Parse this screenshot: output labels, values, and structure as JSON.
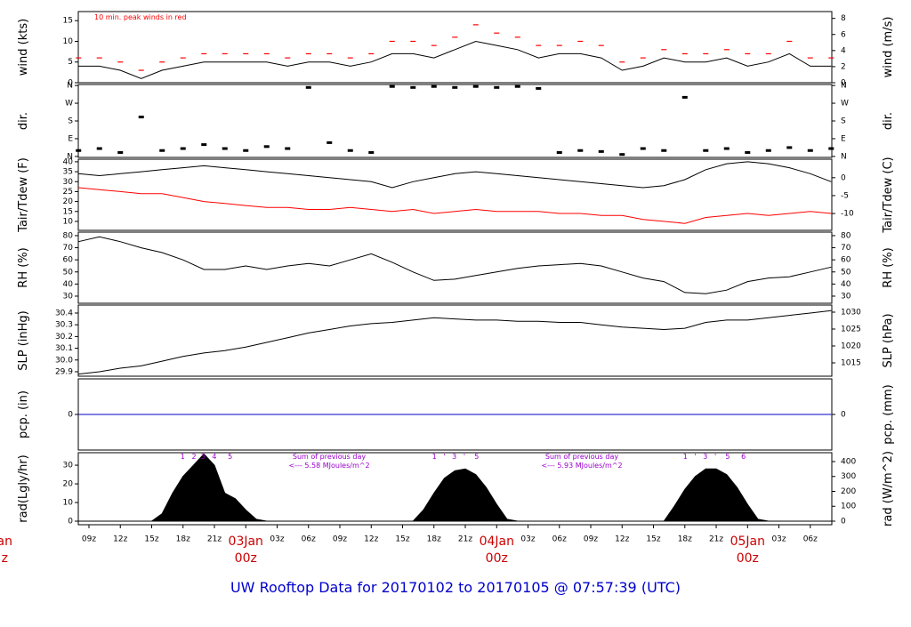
{
  "title": "UW Rooftop Data for 20170102  to  20170105 @ 07:57:39  (UTC)",
  "time_axis": {
    "xlim": [
      -1.02,
      71.06
    ],
    "xticks": [
      {
        "value": 0,
        "label": "09z"
      },
      {
        "value": 3,
        "label": "12z"
      },
      {
        "value": 6,
        "label": "15z"
      },
      {
        "value": 9,
        "label": "18z"
      },
      {
        "value": 12,
        "label": "21z"
      },
      {
        "value": 18,
        "label": "03z"
      },
      {
        "value": 21,
        "label": "06z"
      },
      {
        "value": 24,
        "label": "09z"
      },
      {
        "value": 27,
        "label": "12z"
      },
      {
        "value": 30,
        "label": "15z"
      },
      {
        "value": 33,
        "label": "18z"
      },
      {
        "value": 36,
        "label": "21z"
      },
      {
        "value": 42,
        "label": "03z"
      },
      {
        "value": 45,
        "label": "06z"
      },
      {
        "value": 48,
        "label": "09z"
      },
      {
        "value": 51,
        "label": "12z"
      },
      {
        "value": 54,
        "label": "15z"
      },
      {
        "value": 57,
        "label": "18z"
      },
      {
        "value": 60,
        "label": "21z"
      },
      {
        "value": 66,
        "label": "03z"
      },
      {
        "value": 69,
        "label": "06z"
      }
    ],
    "day_ticks": [
      {
        "value": 15,
        "label": "03Jan",
        "hour": "00z"
      },
      {
        "value": 39,
        "label": "04Jan",
        "hour": "00z"
      },
      {
        "value": 63,
        "label": "05Jan",
        "hour": "00z"
      }
    ],
    "cut_labels": [
      "an",
      "z"
    ]
  },
  "chart_data": [
    {
      "type": "line",
      "ylabel": "wind (kts)",
      "y2label": "wind (m/s)",
      "annotation": "10 min. peak winds in red",
      "ylim": [
        0,
        17.2
      ],
      "yticks": [
        0,
        5,
        10,
        15
      ],
      "y2lim": [
        0,
        8.85
      ],
      "y2ticks": [
        0,
        2,
        4,
        6,
        8
      ],
      "x": [
        -1,
        1,
        3,
        5,
        7,
        9,
        11,
        13,
        15,
        17,
        19,
        21,
        23,
        25,
        27,
        29,
        31,
        33,
        35,
        37,
        39,
        41,
        43,
        45,
        47,
        49,
        51,
        53,
        55,
        57,
        59,
        61,
        63,
        65,
        67,
        69,
        71
      ],
      "series": [
        {
          "color": "#000000",
          "values": [
            4,
            4,
            3,
            1,
            3,
            4,
            5,
            5,
            5,
            5,
            4,
            5,
            5,
            4,
            5,
            7,
            7,
            6,
            8,
            10,
            9,
            8,
            6,
            7,
            7,
            6,
            3,
            4,
            6,
            5,
            5,
            6,
            4,
            5,
            7,
            4,
            4
          ]
        },
        {
          "color": "#ff0000",
          "marker": "dash",
          "values": [
            6,
            6,
            5,
            3,
            5,
            6,
            7,
            7,
            7,
            7,
            6,
            7,
            7,
            6,
            7,
            10,
            10,
            9,
            11,
            14,
            12,
            11,
            9,
            9,
            10,
            9,
            5,
            6,
            8,
            7,
            7,
            8,
            7,
            7,
            10,
            6,
            6
          ]
        }
      ]
    },
    {
      "type": "scatter",
      "ylabel": "dir.",
      "y2label": "dir.",
      "ylim": [
        -5,
        365
      ],
      "yticks": [
        {
          "value": 0,
          "label": "N"
        },
        {
          "value": 90,
          "label": "E"
        },
        {
          "value": 180,
          "label": "S"
        },
        {
          "value": 270,
          "label": "W"
        },
        {
          "value": 360,
          "label": "N"
        }
      ],
      "y2lim": [
        -5,
        365
      ],
      "y2ticks": [
        {
          "value": 0,
          "label": "N"
        },
        {
          "value": 90,
          "label": "E"
        },
        {
          "value": 180,
          "label": "S"
        },
        {
          "value": 270,
          "label": "W"
        },
        {
          "value": 360,
          "label": "N"
        }
      ],
      "x": [
        -1,
        1,
        3,
        5,
        7,
        9,
        11,
        13,
        15,
        17,
        19,
        21,
        23,
        25,
        27,
        29,
        31,
        33,
        35,
        37,
        39,
        41,
        43,
        45,
        47,
        49,
        51,
        53,
        55,
        57,
        59,
        61,
        63,
        65,
        67,
        69,
        71
      ],
      "series": [
        {
          "color": "#000000",
          "values": [
            30,
            40,
            20,
            200,
            30,
            40,
            60,
            40,
            30,
            50,
            40,
            350,
            70,
            30,
            20,
            355,
            350,
            355,
            350,
            355,
            350,
            355,
            345,
            20,
            30,
            25,
            10,
            40,
            30,
            300,
            30,
            40,
            20,
            30,
            45,
            30,
            40
          ]
        }
      ]
    },
    {
      "type": "line",
      "ylabel": "Tair/Tdew (F)",
      "y2label": "Tair/Tdew (C)",
      "ylim": [
        5.5,
        41.3
      ],
      "yticks": [
        10,
        15,
        20,
        25,
        30,
        35,
        40
      ],
      "y2lim": [
        -14.7,
        5.17
      ],
      "y2ticks": [
        -10,
        -5,
        0
      ],
      "x": [
        -1,
        1,
        3,
        5,
        7,
        9,
        11,
        13,
        15,
        17,
        19,
        21,
        23,
        25,
        27,
        29,
        31,
        33,
        35,
        37,
        39,
        41,
        43,
        45,
        47,
        49,
        51,
        53,
        55,
        57,
        59,
        61,
        63,
        65,
        67,
        69,
        71
      ],
      "series": [
        {
          "color": "#000000",
          "values": [
            34,
            33,
            34,
            35,
            36,
            37,
            38,
            37,
            36,
            35,
            34,
            33,
            32,
            31,
            30,
            27,
            30,
            32,
            34,
            35,
            34,
            33,
            32,
            31,
            30,
            29,
            28,
            27,
            28,
            31,
            36,
            39,
            40,
            39,
            37,
            34,
            30
          ]
        },
        {
          "color": "#ff0000",
          "values": [
            27,
            26,
            25,
            24,
            24,
            22,
            20,
            19,
            18,
            17,
            17,
            16,
            16,
            17,
            16,
            15,
            16,
            14,
            15,
            16,
            15,
            15,
            15,
            14,
            14,
            13,
            13,
            11,
            10,
            9,
            12,
            13,
            14,
            13,
            14,
            15,
            14
          ]
        }
      ]
    },
    {
      "type": "line",
      "ylabel": "RH (%)",
      "y2label": "RH (%)",
      "ylim": [
        24.1,
        82.9
      ],
      "yticks": [
        30,
        40,
        50,
        60,
        70,
        80
      ],
      "y2lim": [
        24.1,
        82.9
      ],
      "y2ticks": [
        30,
        40,
        50,
        60,
        70,
        80
      ],
      "x": [
        -1,
        1,
        3,
        5,
        7,
        9,
        11,
        13,
        15,
        17,
        19,
        21,
        23,
        25,
        27,
        29,
        31,
        33,
        35,
        37,
        39,
        41,
        43,
        45,
        47,
        49,
        51,
        53,
        55,
        57,
        59,
        61,
        63,
        65,
        67,
        69,
        71
      ],
      "series": [
        {
          "color": "#000000",
          "values": [
            75,
            79,
            75,
            70,
            66,
            60,
            52,
            52,
            55,
            52,
            55,
            57,
            55,
            60,
            65,
            58,
            50,
            43,
            44,
            47,
            50,
            53,
            55,
            56,
            57,
            55,
            50,
            45,
            42,
            33,
            32,
            35,
            42,
            45,
            46,
            50,
            54
          ]
        }
      ]
    },
    {
      "type": "line",
      "ylabel": "SLP (inHg)",
      "y2label": "SLP (hPa)",
      "ylim": [
        29.862,
        30.468
      ],
      "yticks": [
        29.9,
        {
          "value": 30,
          "label": "30.0"
        },
        30.1,
        30.2,
        30.3,
        30.4
      ],
      "y2lim": [
        1011.05,
        1032.1
      ],
      "y2ticks": [
        1015,
        1020,
        1025,
        1030
      ],
      "x": [
        -1,
        1,
        3,
        5,
        7,
        9,
        11,
        13,
        15,
        17,
        19,
        21,
        23,
        25,
        27,
        29,
        31,
        33,
        35,
        37,
        39,
        41,
        43,
        45,
        47,
        49,
        51,
        53,
        55,
        57,
        59,
        61,
        63,
        65,
        67,
        69,
        71
      ],
      "series": [
        {
          "color": "#000000",
          "values": [
            29.88,
            29.9,
            29.93,
            29.95,
            29.99,
            30.03,
            30.06,
            30.08,
            30.11,
            30.15,
            30.19,
            30.23,
            30.26,
            30.29,
            30.31,
            30.32,
            30.34,
            30.36,
            30.35,
            30.34,
            30.34,
            30.33,
            30.33,
            30.32,
            30.32,
            30.3,
            30.28,
            30.27,
            30.26,
            30.27,
            30.32,
            30.34,
            30.34,
            30.36,
            30.38,
            30.4,
            30.42
          ]
        }
      ]
    },
    {
      "type": "line",
      "ylabel": "pcp. (in)",
      "y2label": "pcp. (mm)",
      "ylim": [
        -1,
        1
      ],
      "yticks": [
        0
      ],
      "y2lim": [
        -1,
        1
      ],
      "y2ticks": [
        0
      ],
      "x": [
        -1,
        71
      ],
      "series": [
        {
          "color": "#0000cc",
          "values": [
            0,
            0
          ]
        }
      ]
    },
    {
      "type": "area",
      "ylabel": "rad(Lgly/hr)",
      "y2label": "rad (W/m^2)",
      "ylim": [
        -1.9,
        36.7
      ],
      "yticks": [
        0,
        10,
        20,
        30
      ],
      "y2lim": [
        -23.9,
        459.7
      ],
      "y2ticks": [
        0,
        100,
        200,
        300,
        400
      ],
      "hour_notes": [
        "1   2  3   4     5",
        "1   '   3   '    5",
        "1   '   3   '    5     6"
      ],
      "sums": [
        {
          "label": "Sum of previous day",
          "total": "<--- 5.58 MJoules/m^2"
        },
        {
          "label": "Sum of previous day",
          "total": "<--- 5.93 MJoules/m^2"
        }
      ],
      "x": [
        -1,
        5,
        6,
        7,
        8,
        9,
        10,
        11,
        12,
        13,
        14,
        15,
        16,
        17,
        29,
        30,
        31,
        32,
        33,
        34,
        35,
        36,
        37,
        38,
        39,
        40,
        41,
        53,
        54,
        55,
        56,
        57,
        58,
        59,
        60,
        61,
        62,
        63,
        64,
        65,
        71
      ],
      "series": [
        {
          "color": "#000000",
          "values": [
            0,
            0,
            0,
            4,
            15,
            24,
            30,
            36,
            30,
            15,
            12,
            6,
            1,
            0,
            0,
            0,
            0,
            6,
            15,
            23,
            27,
            28,
            25,
            18,
            9,
            1,
            0,
            0,
            0,
            0,
            8,
            17,
            24,
            28,
            28,
            25,
            18,
            9,
            1,
            0,
            0
          ]
        }
      ]
    }
  ]
}
